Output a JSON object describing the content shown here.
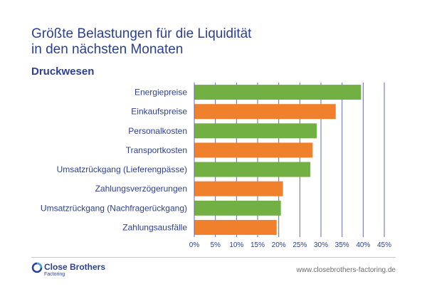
{
  "title": "Größte Belastungen für die Liquidität\nin den nächsten Monaten",
  "subtitle": "Druckwesen",
  "footer": {
    "brand": "Close Brothers",
    "brand_sub": "Factoring",
    "url": "www.closebrothers-factoring.de"
  },
  "colors": {
    "green": "#72b043",
    "orange": "#f0802b",
    "text": "#2b3f94",
    "grid": "#6a6aa8"
  },
  "chart_data": {
    "type": "bar",
    "orientation": "horizontal",
    "categories": [
      "Energiepreise",
      "Einkaufspreise",
      "Personalkosten",
      "Transportkosten",
      "Umsatzrückgang (Lieferengpässe)",
      "Zahlungsverzögerungen",
      "Umsatzrückgang (Nachfragerückgang)",
      "Zahlungsausfälle"
    ],
    "values": [
      39.5,
      33.5,
      29,
      28,
      27.5,
      21,
      20.5,
      19.5
    ],
    "bar_colors": [
      "green",
      "orange",
      "green",
      "orange",
      "green",
      "orange",
      "green",
      "orange"
    ],
    "xlim": [
      0,
      45
    ],
    "xticks": [
      0,
      5,
      10,
      15,
      20,
      25,
      30,
      35,
      40,
      45
    ],
    "xtick_labels": [
      "0%",
      "5%",
      "10%",
      "15%",
      "20%",
      "25%",
      "30%",
      "35%",
      "40%",
      "45%"
    ],
    "grid": true
  }
}
